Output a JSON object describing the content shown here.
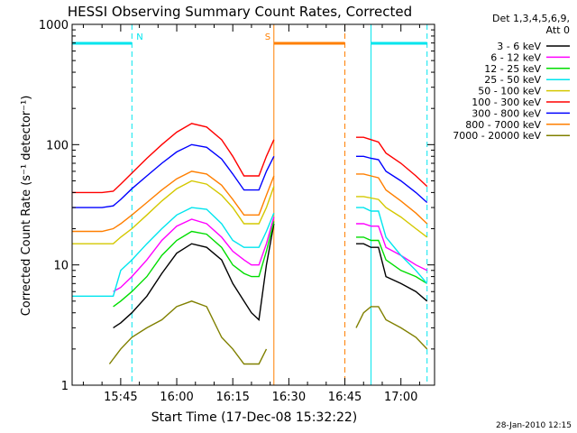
{
  "chart_data": {
    "type": "line",
    "title": "HESSI Observing Summary Count Rates, Corrected",
    "ylabel": "Corrected Count Rate (s⁻¹ detector⁻¹)",
    "xlabel": "Start Time (17-Dec-08 15:32:22)",
    "footer": "28-Jan-2010 12:15",
    "y_scale": "log",
    "ylim": [
      1,
      1000
    ],
    "xlim": [
      "15:32",
      "17:09"
    ],
    "y_ticks": [
      "1",
      "10",
      "100",
      "1000"
    ],
    "x_ticks": [
      "15:45",
      "16:00",
      "16:15",
      "16:30",
      "16:45",
      "17:00"
    ],
    "legend_title": [
      "Det 1,3,4,5,6,9,",
      "Att 0"
    ],
    "legend_position": "right",
    "grid": false,
    "flags": [
      {
        "label": "N",
        "start": "15:32",
        "end": "15:48",
        "color": "#00e5ee"
      },
      {
        "label": "S",
        "start": "16:26",
        "end": "16:45",
        "color": "#ff7f00"
      },
      {
        "label": "",
        "start": "16:52",
        "end": "17:07",
        "color": "#00e5ee"
      }
    ],
    "data_gap": [
      "16:26",
      "16:45"
    ],
    "series": [
      {
        "name": "3 - 6 keV",
        "color": "#000000",
        "x": [
          "15:43",
          "15:45",
          "15:48",
          "15:52",
          "15:56",
          "16:00",
          "16:04",
          "16:08",
          "16:12",
          "16:15",
          "16:18",
          "16:20",
          "16:22",
          "16:24",
          "16:26",
          "16:48",
          "16:50",
          "16:52",
          "16:54",
          "16:56",
          "17:00",
          "17:04",
          "17:07"
        ],
        "values": [
          3.0,
          3.3,
          4.0,
          5.5,
          8.5,
          12.5,
          15,
          14,
          11,
          7,
          5,
          4,
          3.5,
          10,
          22,
          15,
          15,
          14,
          14,
          8,
          7,
          6,
          5
        ]
      },
      {
        "name": "6 - 12 keV",
        "color": "#ff00ff",
        "x": [
          "15:43",
          "15:45",
          "15:48",
          "15:52",
          "15:56",
          "16:00",
          "16:04",
          "16:08",
          "16:12",
          "16:15",
          "16:18",
          "16:20",
          "16:22",
          "16:24",
          "16:26",
          "16:48",
          "16:50",
          "16:52",
          "16:54",
          "16:56",
          "17:00",
          "17:04",
          "17:07"
        ],
        "values": [
          6.0,
          6.5,
          8,
          11,
          16,
          21,
          24,
          22,
          17,
          13,
          11,
          10,
          10,
          15,
          25,
          22,
          22,
          21,
          21,
          14,
          12,
          10,
          9
        ]
      },
      {
        "name": "12 - 25 keV",
        "color": "#00dd00",
        "x": [
          "15:43",
          "15:45",
          "15:48",
          "15:52",
          "15:56",
          "16:00",
          "16:04",
          "16:08",
          "16:12",
          "16:15",
          "16:18",
          "16:20",
          "16:22",
          "16:24",
          "16:26",
          "16:48",
          "16:50",
          "16:52",
          "16:54",
          "16:56",
          "17:00",
          "17:04",
          "17:07"
        ],
        "values": [
          4.5,
          5,
          6,
          8,
          12,
          16,
          19,
          18,
          14,
          10,
          8.5,
          8,
          8,
          13,
          23,
          17,
          17,
          16,
          16,
          11,
          9,
          8,
          7
        ]
      },
      {
        "name": "25 - 50 keV",
        "color": "#00e5ee",
        "x": [
          "15:32",
          "15:40",
          "15:43",
          "15:45",
          "15:48",
          "15:52",
          "15:56",
          "16:00",
          "16:04",
          "16:08",
          "16:12",
          "16:15",
          "16:18",
          "16:20",
          "16:22",
          "16:24",
          "16:26",
          "16:48",
          "16:50",
          "16:52",
          "16:54",
          "16:56",
          "17:00",
          "17:04",
          "17:07"
        ],
        "values": [
          5.5,
          5.5,
          5.5,
          9,
          11,
          15,
          20,
          26,
          30,
          29,
          22,
          16,
          14,
          14,
          14,
          19,
          27,
          30,
          30,
          28,
          28,
          17,
          12,
          9,
          7
        ]
      },
      {
        "name": "50 - 100 keV",
        "color": "#d4c800",
        "x": [
          "15:32",
          "15:40",
          "15:43",
          "15:45",
          "15:48",
          "15:52",
          "15:56",
          "16:00",
          "16:04",
          "16:08",
          "16:12",
          "16:15",
          "16:18",
          "16:20",
          "16:22",
          "16:24",
          "16:26",
          "16:48",
          "16:50",
          "16:52",
          "16:54",
          "16:56",
          "17:00",
          "17:04",
          "17:07"
        ],
        "values": [
          15,
          15,
          15,
          17,
          20,
          26,
          34,
          43,
          50,
          47,
          38,
          30,
          22,
          22,
          22,
          30,
          45,
          37,
          37,
          36,
          35,
          30,
          25,
          20,
          17
        ]
      },
      {
        "name": "100 - 300 keV",
        "color": "#ff0000",
        "x": [
          "15:32",
          "15:40",
          "15:43",
          "15:45",
          "15:48",
          "15:52",
          "15:56",
          "16:00",
          "16:04",
          "16:08",
          "16:12",
          "16:15",
          "16:18",
          "16:20",
          "16:22",
          "16:24",
          "16:26",
          "16:48",
          "16:50",
          "16:52",
          "16:54",
          "16:56",
          "17:00",
          "17:04",
          "17:07"
        ],
        "values": [
          40,
          40,
          41,
          47,
          58,
          77,
          100,
          127,
          150,
          140,
          110,
          80,
          55,
          55,
          55,
          80,
          110,
          115,
          115,
          110,
          105,
          85,
          70,
          55,
          45
        ]
      },
      {
        "name": "300 - 800 keV",
        "color": "#0000ff",
        "x": [
          "15:32",
          "15:40",
          "15:43",
          "15:45",
          "15:48",
          "15:52",
          "15:56",
          "16:00",
          "16:04",
          "16:08",
          "16:12",
          "16:15",
          "16:18",
          "16:20",
          "16:22",
          "16:24",
          "16:26",
          "16:48",
          "16:50",
          "16:52",
          "16:54",
          "16:56",
          "17:00",
          "17:04",
          "17:07"
        ],
        "values": [
          30,
          30,
          31,
          35,
          43,
          55,
          70,
          87,
          100,
          95,
          76,
          57,
          42,
          42,
          42,
          60,
          80,
          80,
          80,
          77,
          75,
          60,
          50,
          40,
          33
        ]
      },
      {
        "name": "800 - 7000 keV",
        "color": "#ff7f00",
        "x": [
          "15:32",
          "15:40",
          "15:43",
          "15:45",
          "15:48",
          "15:52",
          "15:56",
          "16:00",
          "16:04",
          "16:08",
          "16:12",
          "16:15",
          "16:18",
          "16:20",
          "16:22",
          "16:24",
          "16:26",
          "16:48",
          "16:50",
          "16:52",
          "16:54",
          "16:56",
          "17:00",
          "17:04",
          "17:07"
        ],
        "values": [
          19,
          19,
          20,
          22,
          26,
          33,
          42,
          52,
          60,
          57,
          46,
          35,
          26,
          26,
          26,
          38,
          55,
          57,
          57,
          55,
          53,
          42,
          34,
          27,
          22
        ]
      },
      {
        "name": "7000 - 20000 keV",
        "color": "#808000",
        "x": [
          "15:42",
          "15:45",
          "15:48",
          "15:52",
          "15:56",
          "16:00",
          "16:04",
          "16:08",
          "16:12",
          "16:15",
          "16:18",
          "16:20",
          "16:22",
          "16:24",
          "16:48",
          "16:50",
          "16:52",
          "16:54",
          "16:56",
          "17:00",
          "17:04",
          "17:07"
        ],
        "values": [
          1.5,
          2,
          2.5,
          3,
          3.5,
          4.5,
          5,
          4.5,
          2.5,
          2,
          1.5,
          1.5,
          1.5,
          2,
          3,
          4,
          4.5,
          4.5,
          3.5,
          3,
          2.5,
          2
        ]
      }
    ]
  }
}
